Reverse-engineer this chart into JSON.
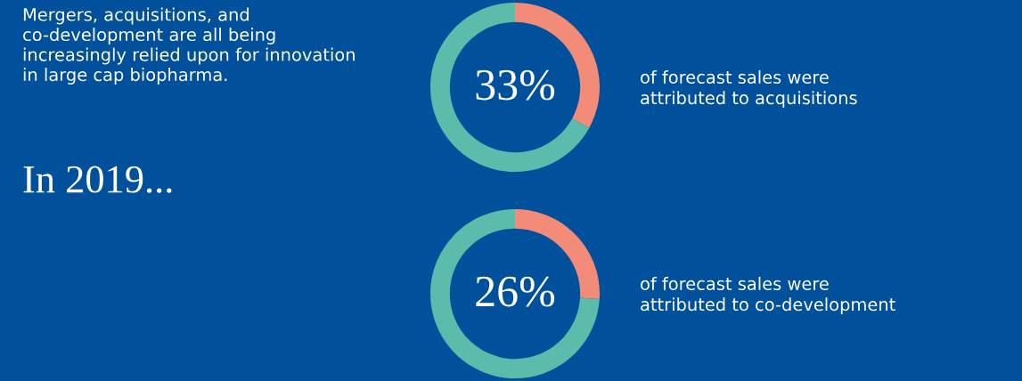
{
  "chart_data": [
    {
      "type": "other",
      "annotations": [
        "Mergers, acquisitions, and\nco-development are all being\nincreasingly relied upon for innovation\nin large cap biopharma.",
        "In 2019..."
      ]
    },
    {
      "type": "donut",
      "categories": [
        null,
        null
      ],
      "values": [
        33,
        67
      ],
      "colors": [
        "#f28b77",
        "#5bbcab"
      ],
      "annotations": [
        "33%",
        "of forecast sales were\nattributed to acquisitions"
      ]
    },
    {
      "type": "donut",
      "categories": [
        null,
        null
      ],
      "values": [
        26,
        74
      ],
      "colors": [
        "#f28b77",
        "#5bbcab"
      ],
      "annotations": [
        "26%",
        "of forecast sales were\nattributed to co-development"
      ]
    }
  ]
}
